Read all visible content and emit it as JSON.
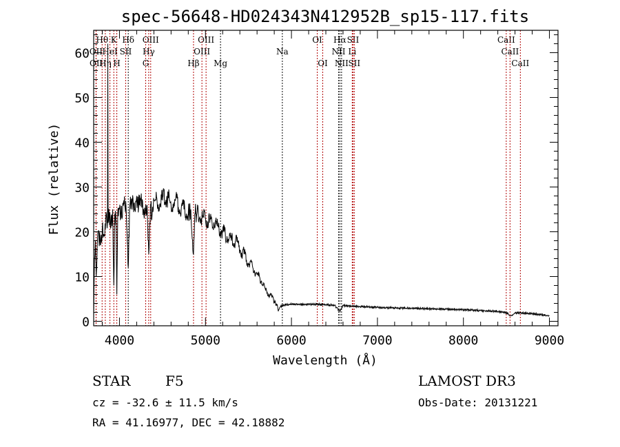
{
  "chart_data": {
    "type": "line",
    "title": "spec-56648-HD024343N412952B_sp15-117.fits",
    "xlabel": "Wavelength (Å)",
    "ylabel": "Flux (relative)",
    "xlim": [
      3700,
      9100
    ],
    "ylim": [
      -1,
      65
    ],
    "xticks": [
      4000,
      5000,
      6000,
      7000,
      8000,
      9000
    ],
    "yticks": [
      0,
      10,
      20,
      30,
      40,
      50,
      60
    ],
    "grid": false,
    "series": [
      {
        "name": "spectrum",
        "x": [
          3700,
          3710,
          3720,
          3730,
          3750,
          3780,
          3800,
          3820,
          3840,
          3860,
          3864,
          3868,
          3880,
          3900,
          3920,
          3934,
          3945,
          3960,
          3969,
          3980,
          4000,
          4030,
          4050,
          4080,
          4102,
          4120,
          4150,
          4180,
          4200,
          4230,
          4250,
          4280,
          4300,
          4320,
          4340,
          4360,
          4380,
          4400,
          4450,
          4500,
          4550,
          4600,
          4650,
          4700,
          4750,
          4800,
          4830,
          4861,
          4880,
          4900,
          4950,
          5000,
          5050,
          5100,
          5150,
          5200,
          5250,
          5300,
          5350,
          5400,
          5450,
          5500,
          5550,
          5600,
          5650,
          5700,
          5750,
          5800,
          5830,
          5850,
          5870,
          5900,
          6000,
          6100,
          6200,
          6300,
          6400,
          6500,
          6563,
          6600,
          6700,
          6800,
          6900,
          7000,
          7200,
          7400,
          7600,
          7800,
          8000,
          8200,
          8400,
          8500,
          8542,
          8600,
          8700,
          8800,
          8900,
          9000
        ],
        "y": [
          1,
          14,
          18,
          10,
          20,
          17,
          21,
          19,
          23,
          22,
          62,
          22,
          24,
          21,
          25,
          8,
          24,
          22,
          6,
          24,
          25,
          23,
          27,
          24,
          12,
          26,
          27,
          25,
          28,
          26,
          27,
          25,
          24,
          26,
          15,
          26,
          24,
          27,
          26,
          27,
          28,
          26,
          27,
          25,
          25,
          24,
          25,
          15,
          24,
          24,
          23,
          23,
          22,
          22,
          21,
          20,
          19,
          18,
          18,
          16,
          15,
          13,
          12,
          10.5,
          9,
          7,
          6,
          4.5,
          3.5,
          2.5,
          3.2,
          3.6,
          3.8,
          3.8,
          3.8,
          3.8,
          3.7,
          3.6,
          2.2,
          3.5,
          3.4,
          3.3,
          3.2,
          3.1,
          3,
          2.9,
          2.8,
          2.7,
          2.6,
          2.4,
          2.2,
          2,
          1.2,
          1.9,
          1.8,
          1.7,
          1.5,
          1.2
        ]
      }
    ],
    "lines": [
      {
        "label": "Hθ",
        "wl": 3798,
        "row": 0,
        "color": "#b00000"
      },
      {
        "label": "K",
        "wl": 3934,
        "row": 0,
        "color": "#b00000"
      },
      {
        "label": "Hδ",
        "wl": 4102,
        "row": 0,
        "color": "#000000"
      },
      {
        "label": "OIII",
        "wl": 4363,
        "row": 0,
        "color": "#b00000"
      },
      {
        "label": "OIII",
        "wl": 5007,
        "row": 0,
        "color": "#b00000"
      },
      {
        "label": "OI",
        "wl": 6300,
        "row": 0,
        "color": "#b00000"
      },
      {
        "label": "Hα",
        "wl": 6563,
        "row": 0,
        "color": "#000000"
      },
      {
        "label": "SII",
        "wl": 6716,
        "row": 0,
        "color": "#b00000"
      },
      {
        "label": "CaII",
        "wl": 8498,
        "row": 0,
        "color": "#b00000"
      },
      {
        "label": "OII",
        "wl": 3727,
        "row": 1,
        "color": "#b00000"
      },
      {
        "label": "HeI",
        "wl": 3889,
        "row": 1,
        "color": "#b00000"
      },
      {
        "label": "SII",
        "wl": 4072,
        "row": 1,
        "color": "#b00000"
      },
      {
        "label": "Hγ",
        "wl": 4340,
        "row": 1,
        "color": "#b00000"
      },
      {
        "label": "OIII",
        "wl": 4959,
        "row": 1,
        "color": "#b00000"
      },
      {
        "label": "Na",
        "wl": 5894,
        "row": 1,
        "color": "#000000"
      },
      {
        "label": "NII",
        "wl": 6548,
        "row": 1,
        "color": "#000000"
      },
      {
        "label": "Li",
        "wl": 6707,
        "row": 1,
        "color": "#b00000"
      },
      {
        "label": "CaII",
        "wl": 8542,
        "row": 1,
        "color": "#b00000"
      },
      {
        "label": "OII",
        "wl": 3729,
        "row": 2,
        "color": "#b00000"
      },
      {
        "label": "Hη",
        "wl": 3835,
        "row": 2,
        "color": "#b00000"
      },
      {
        "label": "H",
        "wl": 3969,
        "row": 2,
        "color": "#b00000"
      },
      {
        "label": "G",
        "wl": 4305,
        "row": 2,
        "color": "#b00000"
      },
      {
        "label": "Hβ",
        "wl": 4861,
        "row": 2,
        "color": "#b00000"
      },
      {
        "label": "Mg",
        "wl": 5175,
        "row": 2,
        "color": "#000000"
      },
      {
        "label": "OI",
        "wl": 6364,
        "row": 2,
        "color": "#b00000"
      },
      {
        "label": "NII",
        "wl": 6583,
        "row": 2,
        "color": "#000000"
      },
      {
        "label": "SII",
        "wl": 6731,
        "row": 2,
        "color": "#b00000"
      },
      {
        "label": "CaII",
        "wl": 8662,
        "row": 2,
        "color": "#b00000"
      }
    ]
  },
  "info": {
    "class": "STAR",
    "subclass": "F5",
    "cz": "cz = -32.6 ± 11.5 km/s",
    "coords": "RA =  41.16977, DEC =  42.18882",
    "survey": "LAMOST DR3",
    "obsdate": "Obs-Date: 20131221"
  }
}
